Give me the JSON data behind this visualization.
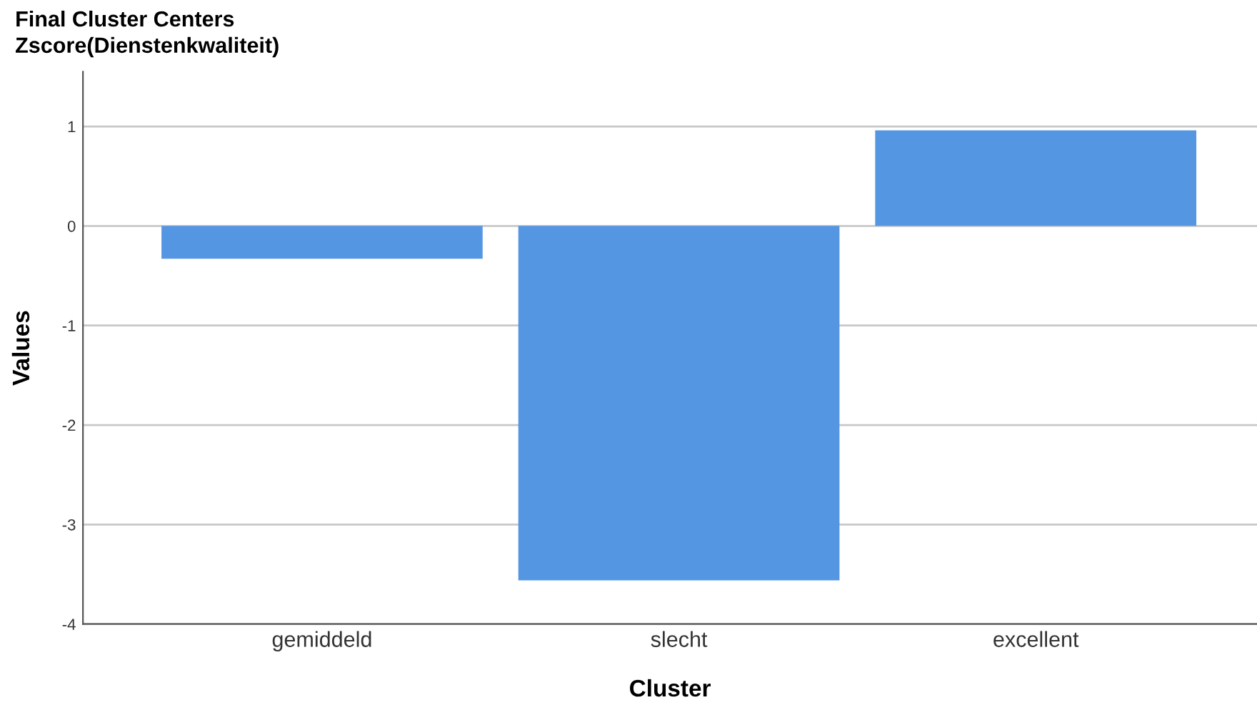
{
  "chart_data": {
    "type": "bar",
    "title": "Final Cluster Centers",
    "subtitle": "Zscore(Dienstenkwaliteit)",
    "xlabel": "Cluster",
    "ylabel": "Values",
    "categories": [
      "gemiddeld",
      "slecht",
      "excellent"
    ],
    "values": [
      -0.33,
      -3.56,
      0.96
    ],
    "color": "#5596e3",
    "ylim": [
      -4,
      1.55
    ],
    "yticks": [
      -4,
      -3,
      -2,
      -1,
      0,
      1
    ],
    "grid": "y"
  }
}
